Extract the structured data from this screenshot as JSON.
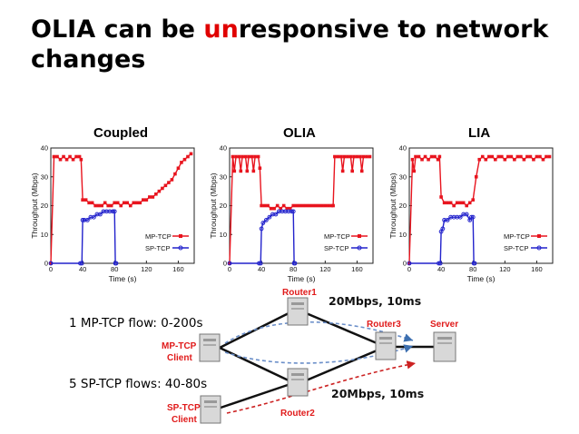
{
  "slide": {
    "title_part1": "OLIA can be ",
    "title_highlight": "un",
    "title_part2": "responsive to network changes",
    "highlight_color": "#e00000"
  },
  "chart_data": [
    {
      "type": "line",
      "title": "Coupled",
      "xlabel": "Time (s)",
      "ylabel": "Throughput (Mbps)",
      "xlim": [
        0,
        180
      ],
      "ylim": [
        0,
        40
      ],
      "xticks": [
        0,
        40,
        80,
        120,
        160
      ],
      "yticks": [
        0,
        10,
        20,
        30,
        40
      ],
      "legend": "bottom-right",
      "series": [
        {
          "name": "MP-TCP",
          "color": "#e8141e",
          "marker": "square",
          "x": [
            0,
            4,
            8,
            12,
            16,
            20,
            24,
            28,
            32,
            36,
            38,
            40,
            44,
            48,
            52,
            56,
            60,
            64,
            68,
            72,
            76,
            80,
            84,
            88,
            92,
            96,
            100,
            104,
            108,
            112,
            116,
            120,
            124,
            128,
            132,
            136,
            140,
            144,
            148,
            152,
            156,
            160,
            164,
            168,
            172,
            176
          ],
          "y": [
            0,
            37,
            37,
            36,
            37,
            36,
            37,
            36,
            37,
            37,
            36,
            22,
            22,
            21,
            21,
            20,
            20,
            20,
            21,
            20,
            20,
            21,
            21,
            20,
            21,
            21,
            20,
            21,
            21,
            21,
            22,
            22,
            23,
            23,
            24,
            25,
            26,
            27,
            28,
            29,
            31,
            33,
            35,
            36,
            37,
            38
          ]
        },
        {
          "name": "SP-TCP",
          "color": "#2222cc",
          "marker": "circle",
          "x": [
            0,
            37,
            39,
            40,
            42,
            46,
            50,
            54,
            58,
            62,
            66,
            70,
            74,
            78,
            80,
            81,
            82
          ],
          "y": [
            0,
            0,
            0,
            15,
            15,
            15,
            16,
            16,
            17,
            17,
            18,
            18,
            18,
            18,
            18,
            0,
            0
          ]
        }
      ]
    },
    {
      "type": "line",
      "title": "OLIA",
      "xlabel": "Time (s)",
      "ylabel": "Throughput (Mbps)",
      "xlim": [
        0,
        180
      ],
      "ylim": [
        0,
        40
      ],
      "xticks": [
        0,
        40,
        80,
        120,
        160
      ],
      "yticks": [
        0,
        10,
        20,
        30,
        40
      ],
      "legend": "bottom-right",
      "series": [
        {
          "name": "MP-TCP",
          "color": "#e8141e",
          "marker": "square",
          "x": [
            0,
            4,
            6,
            8,
            12,
            14,
            16,
            20,
            22,
            24,
            28,
            30,
            32,
            36,
            38,
            40,
            44,
            48,
            52,
            56,
            60,
            64,
            68,
            72,
            76,
            80,
            84,
            88,
            92,
            96,
            100,
            104,
            108,
            112,
            116,
            120,
            124,
            128,
            130,
            132,
            136,
            140,
            142,
            144,
            148,
            152,
            154,
            156,
            160,
            164,
            166,
            168,
            172,
            176
          ],
          "y": [
            0,
            37,
            32,
            37,
            37,
            32,
            37,
            37,
            32,
            37,
            37,
            32,
            37,
            37,
            33,
            20,
            20,
            20,
            19,
            19,
            20,
            19,
            20,
            19,
            19,
            20,
            20,
            20,
            20,
            20,
            20,
            20,
            20,
            20,
            20,
            20,
            20,
            20,
            20,
            37,
            37,
            37,
            32,
            37,
            37,
            37,
            32,
            37,
            37,
            37,
            32,
            37,
            37,
            37
          ]
        },
        {
          "name": "SP-TCP",
          "color": "#2222cc",
          "marker": "circle",
          "x": [
            0,
            37,
            39,
            40,
            42,
            46,
            50,
            54,
            58,
            62,
            66,
            70,
            74,
            78,
            80,
            81,
            82
          ],
          "y": [
            0,
            0,
            0,
            12,
            14,
            15,
            16,
            17,
            17,
            18,
            18,
            18,
            18,
            18,
            18,
            0,
            0
          ]
        }
      ]
    },
    {
      "type": "line",
      "title": "LIA",
      "xlabel": "Time (s)",
      "ylabel": "Throughput (Mbps)",
      "xlim": [
        0,
        180
      ],
      "ylim": [
        0,
        40
      ],
      "xticks": [
        0,
        40,
        80,
        120,
        160
      ],
      "yticks": [
        0,
        10,
        20,
        30,
        40
      ],
      "legend": "bottom-right",
      "series": [
        {
          "name": "MP-TCP",
          "color": "#e8141e",
          "marker": "square",
          "x": [
            0,
            4,
            6,
            8,
            12,
            16,
            20,
            24,
            28,
            32,
            36,
            38,
            40,
            44,
            48,
            52,
            56,
            60,
            64,
            68,
            72,
            76,
            80,
            84,
            88,
            92,
            96,
            100,
            104,
            108,
            112,
            116,
            120,
            124,
            128,
            132,
            136,
            140,
            144,
            148,
            152,
            156,
            160,
            164,
            168,
            172,
            176
          ],
          "y": [
            0,
            36,
            32,
            37,
            37,
            36,
            37,
            36,
            37,
            37,
            36,
            37,
            23,
            21,
            21,
            21,
            20,
            21,
            21,
            21,
            20,
            21,
            22,
            30,
            36,
            37,
            36,
            37,
            37,
            36,
            37,
            37,
            36,
            37,
            37,
            36,
            37,
            37,
            36,
            37,
            37,
            36,
            37,
            37,
            36,
            37,
            37
          ]
        },
        {
          "name": "SP-TCP",
          "color": "#2222cc",
          "marker": "circle",
          "x": [
            0,
            37,
            39,
            40,
            42,
            44,
            48,
            52,
            56,
            60,
            64,
            68,
            72,
            76,
            78,
            80,
            81,
            82
          ],
          "y": [
            0,
            0,
            0,
            11,
            12,
            15,
            15,
            16,
            16,
            16,
            16,
            17,
            17,
            15,
            16,
            16,
            0,
            0
          ]
        }
      ]
    }
  ],
  "network": {
    "router1": "Router1",
    "router2": "Router2",
    "router3": "Router3",
    "server": "Server",
    "mptcp_client_line1": "MP-TCP",
    "mptcp_client_line2": "Client",
    "sptcp_client_line1": "SP-TCP",
    "sptcp_client_line2": "Client",
    "link_top": "20Mbps, 10ms",
    "link_bottom": "20Mbps, 10ms",
    "node_label_color": "#e01a1a"
  },
  "notes": {
    "mptcp_flow": "1 MP-TCP flow: 0-200s",
    "sptcp_flows": "5 SP-TCP flows: 40-80s"
  }
}
